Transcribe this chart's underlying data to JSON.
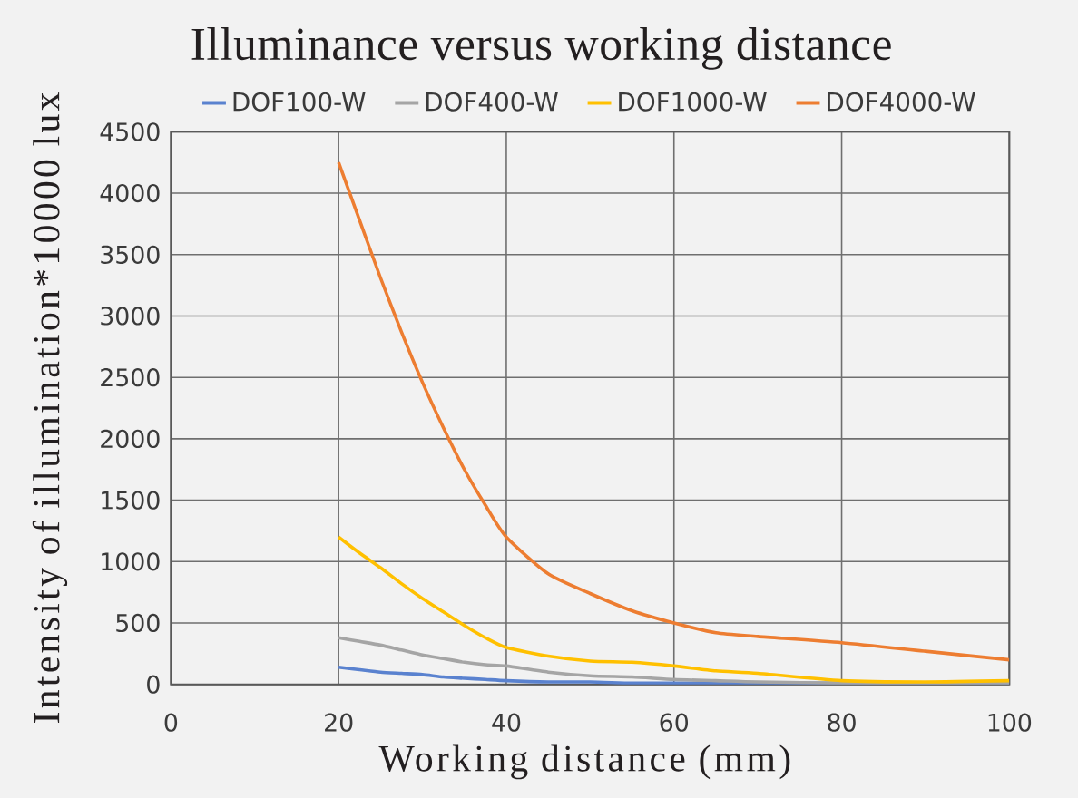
{
  "chart_data": {
    "type": "line",
    "title": "Illuminance versus working distance",
    "xlabel": "Working distance (mm)",
    "ylabel": "Intensity of illumination*10000 lux",
    "x": [
      20,
      22.5,
      25,
      27.5,
      30,
      32.5,
      35,
      37.5,
      40,
      45,
      50,
      55,
      60,
      65,
      70,
      80,
      90,
      100
    ],
    "series": [
      {
        "name": "DOF100-W",
        "color": "#5a82cf",
        "values": [
          140,
          120,
          100,
          90,
          80,
          60,
          50,
          40,
          30,
          20,
          20,
          10,
          10,
          10,
          10,
          10,
          10,
          10
        ]
      },
      {
        "name": "DOF400-W",
        "color": "#a5a5a5",
        "values": [
          380,
          350,
          320,
          280,
          240,
          210,
          180,
          160,
          150,
          100,
          70,
          60,
          40,
          30,
          20,
          10,
          10,
          10
        ]
      },
      {
        "name": "DOF1000-W",
        "color": "#ffc000",
        "values": [
          1200,
          1070,
          950,
          820,
          700,
          590,
          480,
          380,
          300,
          230,
          190,
          180,
          150,
          110,
          90,
          30,
          20,
          30
        ]
      },
      {
        "name": "DOF4000-W",
        "color": "#ed7d31",
        "values": [
          4250,
          3780,
          3310,
          2870,
          2460,
          2090,
          1750,
          1460,
          1200,
          900,
          740,
          600,
          500,
          420,
          390,
          340,
          270,
          200
        ]
      }
    ],
    "xlim": [
      0,
      100
    ],
    "ylim": [
      0,
      4500
    ],
    "xticks": [
      0,
      20,
      40,
      60,
      80,
      100
    ],
    "yticks": [
      0,
      500,
      1000,
      1500,
      2000,
      2500,
      3000,
      3500,
      4000,
      4500
    ],
    "grid": true,
    "legend": "top",
    "marker": "none",
    "line_style": "solid"
  }
}
